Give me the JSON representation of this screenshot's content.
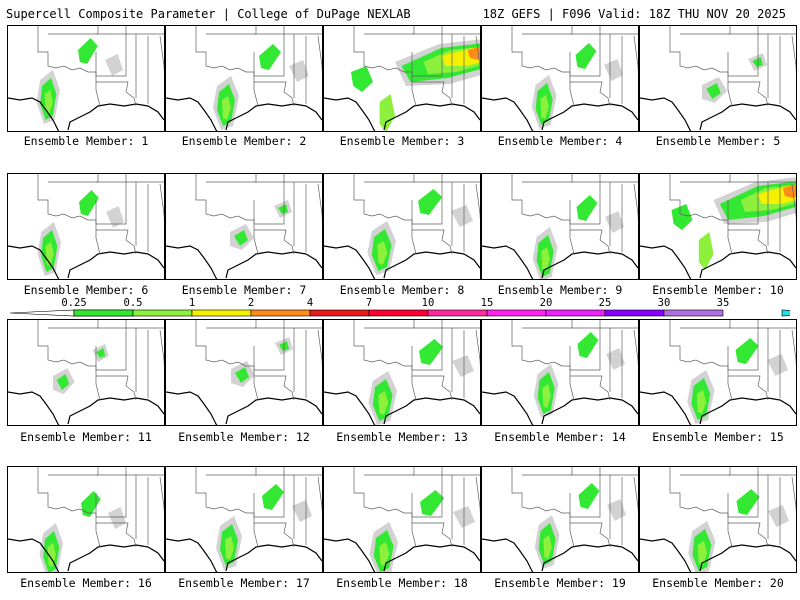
{
  "header": {
    "left": "Supercell Composite Parameter | College of DuPage NEXLAB",
    "right": "18Z GEFS | F096 Valid: 18Z THU NOV 20 2025"
  },
  "colors": {
    "lt_gray": "#d2d2d2",
    "green": "#33e833",
    "lt_green": "#8cf03c",
    "yellow": "#f5f000",
    "orange": "#ff8c1a",
    "red": "#e81c1c",
    "borders": "#000000",
    "states": "#606060"
  },
  "legend": {
    "ticks": [
      "0.25",
      "0.5",
      "1",
      "2",
      "4",
      "7",
      "10",
      "15",
      "20",
      "25",
      "30",
      "35"
    ],
    "colors": [
      "#d2d2d2",
      "#33e833",
      "#8cf03c",
      "#f5f000",
      "#ff8c1a",
      "#e81c1c",
      "#ff0033",
      "#ff2aa0",
      "#ff22ee",
      "#ee22ff",
      "#8800ff",
      "#b070e0",
      "#22ddee"
    ]
  },
  "panels": [
    {
      "label": "Ensemble Member: 1",
      "intensity": "moderate"
    },
    {
      "label": "Ensemble Member: 2",
      "intensity": "moderate"
    },
    {
      "label": "Ensemble Member: 3",
      "intensity": "high"
    },
    {
      "label": "Ensemble Member: 4",
      "intensity": "moderate"
    },
    {
      "label": "Ensemble Member: 5",
      "intensity": "low"
    },
    {
      "label": "Ensemble Member: 6",
      "intensity": "moderate"
    },
    {
      "label": "Ensemble Member: 7",
      "intensity": "low"
    },
    {
      "label": "Ensemble Member: 8",
      "intensity": "moderate"
    },
    {
      "label": "Ensemble Member: 9",
      "intensity": "moderate"
    },
    {
      "label": "Ensemble Member: 10",
      "intensity": "high"
    },
    {
      "label": "Ensemble Member: 11",
      "intensity": "low"
    },
    {
      "label": "Ensemble Member: 12",
      "intensity": "low"
    },
    {
      "label": "Ensemble Member: 13",
      "intensity": "moderate"
    },
    {
      "label": "Ensemble Member: 14",
      "intensity": "moderate"
    },
    {
      "label": "Ensemble Member: 15",
      "intensity": "moderate"
    },
    {
      "label": "Ensemble Member: 16",
      "intensity": "moderate"
    },
    {
      "label": "Ensemble Member: 17",
      "intensity": "moderate"
    },
    {
      "label": "Ensemble Member: 18",
      "intensity": "moderate"
    },
    {
      "label": "Ensemble Member: 19",
      "intensity": "moderate"
    },
    {
      "label": "Ensemble Member: 20",
      "intensity": "moderate"
    }
  ]
}
